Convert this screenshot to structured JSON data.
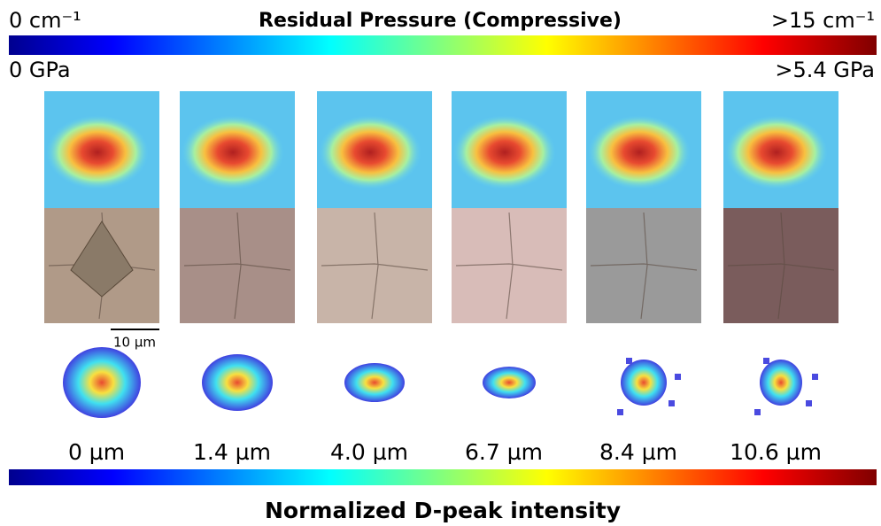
{
  "top_scale": {
    "title": "Residual Pressure (Compressive)",
    "min_label": "0 cm⁻¹",
    "max_label": ">15 cm⁻¹",
    "min_sub_label": "0 GPa",
    "max_sub_label": ">5.4 GPa"
  },
  "scale_bar": "10 µm",
  "panels": [
    {
      "depth": "0 µm"
    },
    {
      "depth": "1.4 µm"
    },
    {
      "depth": "4.0 µm"
    },
    {
      "depth": "6.7 µm"
    },
    {
      "depth": "8.4 µm"
    },
    {
      "depth": "10.6 µm"
    }
  ],
  "bottom_scale": {
    "title": "Normalized D-peak intensity"
  }
}
